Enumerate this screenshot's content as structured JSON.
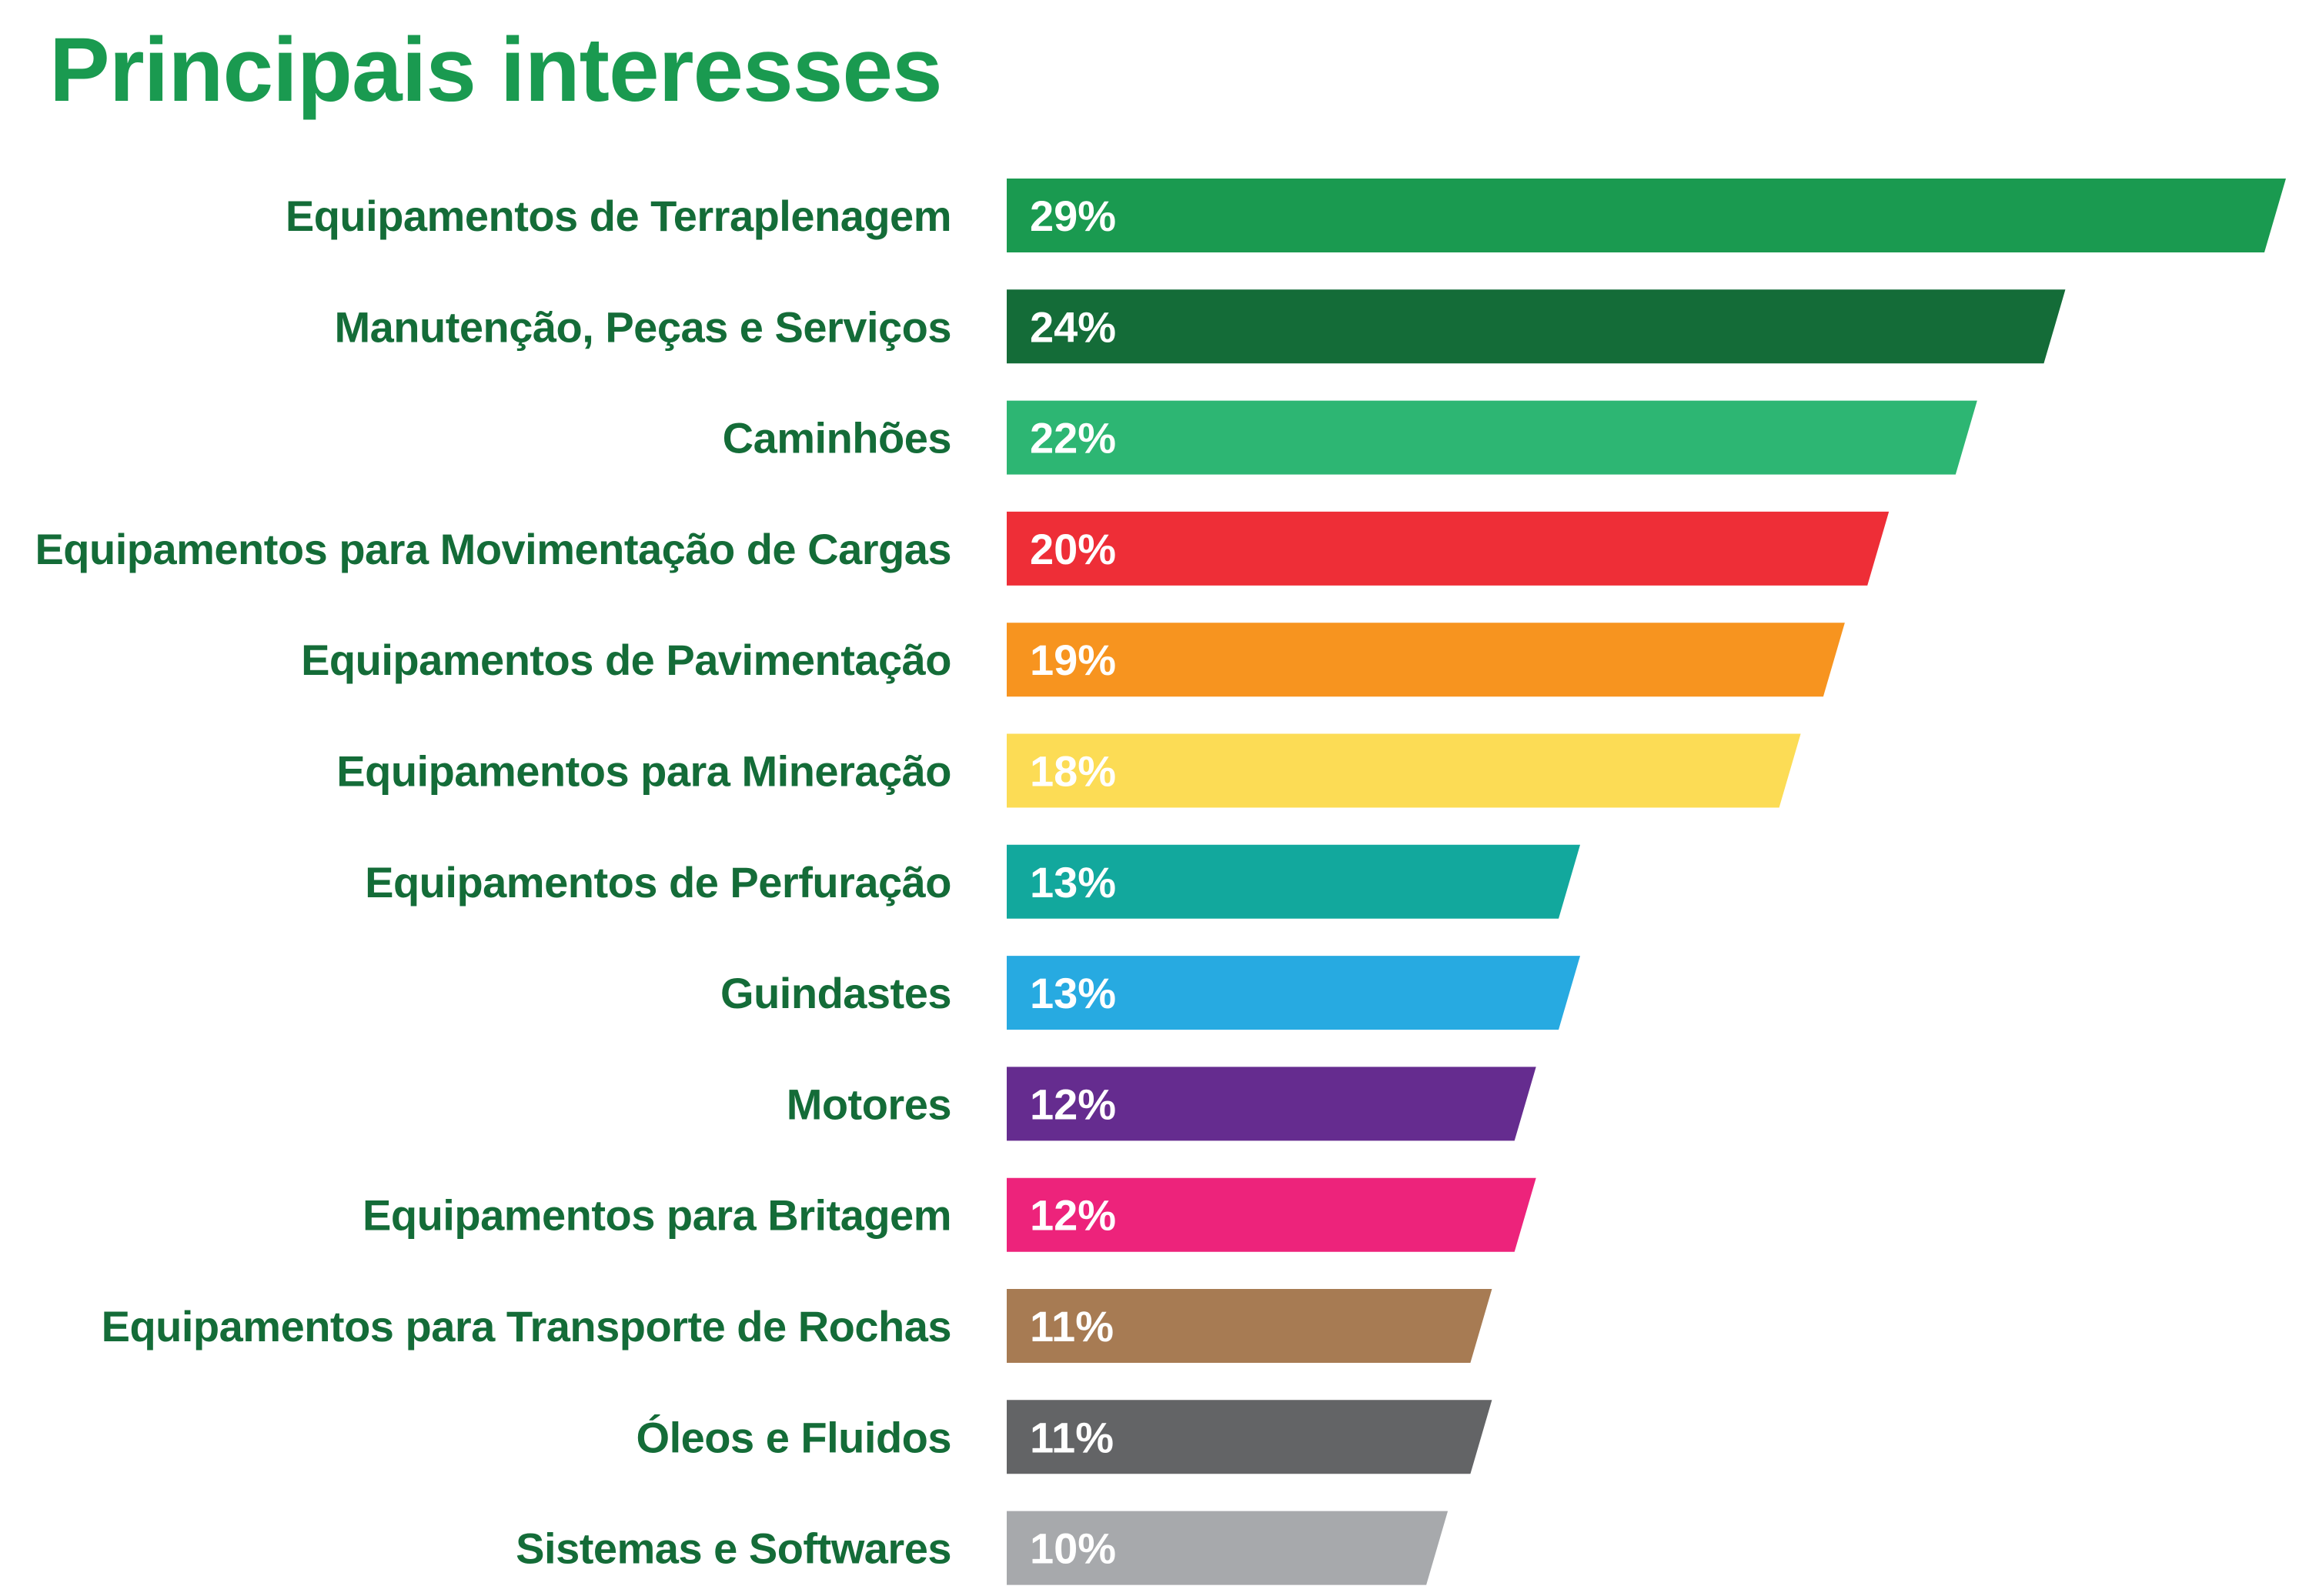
{
  "title": "Principais interesses",
  "chart_data": {
    "type": "bar",
    "orientation": "horizontal",
    "title": "Principais interesses",
    "xlabel": "",
    "ylabel": "",
    "grid": false,
    "legend": "none",
    "xlim": [
      0,
      29
    ],
    "categories": [
      "Equipamentos de Terraplenagem",
      "Manutenção, Peças e Serviços",
      "Caminhões",
      "Equipamentos para Movimentação de Cargas",
      "Equipamentos de Pavimentação",
      "Equipamentos para Mineração",
      "Equipamentos de Perfuração",
      "Guindastes",
      "Motores",
      "Equipamentos para Britagem",
      "Equipamentos para Transporte de Rochas",
      "Óleos e Fluidos",
      "Sistemas e Softwares"
    ],
    "values": [
      29,
      24,
      22,
      20,
      19,
      18,
      13,
      13,
      12,
      12,
      11,
      11,
      10
    ],
    "value_labels": [
      "29%",
      "24%",
      "22%",
      "20%",
      "19%",
      "18%",
      "13%",
      "13%",
      "12%",
      "12%",
      "11%",
      "11%",
      "10%"
    ],
    "colors": [
      "#1a9a50",
      "#146c38",
      "#2db673",
      "#ee2e37",
      "#f7941f",
      "#fcdc55",
      "#12a89d",
      "#27aae1",
      "#652c8f",
      "#ed237b",
      "#a77b53",
      "#636466",
      "#a7a9ac"
    ]
  }
}
